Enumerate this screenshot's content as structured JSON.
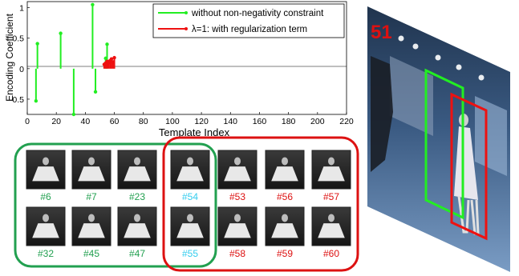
{
  "chart_data": {
    "type": "stem",
    "xlabel": "Template Index",
    "ylabel": "Encoding Coefficient",
    "xlim": [
      0,
      220
    ],
    "ylim": [
      -0.75,
      1.1
    ],
    "xticks": [
      "0",
      "20",
      "40",
      "60",
      "80",
      "100",
      "120",
      "140",
      "160",
      "180",
      "200",
      "220"
    ],
    "yticks": [
      "-0.5",
      "0",
      "0.5",
      "1"
    ],
    "grid": false,
    "legend_position": "top-right",
    "series": [
      {
        "name": "without non-negativity constraint",
        "color": "#22ee22",
        "x": [
          6,
          7,
          23,
          32,
          45,
          47,
          54,
          55
        ],
        "y": [
          -0.53,
          0.41,
          0.58,
          -0.75,
          1.05,
          -0.38,
          0.17,
          0.4
        ]
      },
      {
        "name": "λ=1: with regularization term",
        "color": "#ee1111",
        "x": [
          53,
          54,
          55,
          56,
          57,
          58,
          59,
          60
        ],
        "y": [
          0.07,
          0.09,
          0.12,
          0.1,
          0.13,
          0.16,
          0.11,
          0.18
        ]
      }
    ]
  },
  "thumbs": {
    "green_labels": [
      "#6",
      "#7",
      "#23",
      "#32",
      "#45",
      "#47"
    ],
    "shared_labels": [
      "#54",
      "#55"
    ],
    "red_labels": [
      "#53",
      "#56",
      "#57",
      "#58",
      "#59",
      "#60"
    ],
    "green_color": "#22a050",
    "red_color": "#dd1111",
    "shared_color": "#33ccee"
  },
  "photo": {
    "frame_label": "51",
    "label_color": "#dd1111"
  }
}
